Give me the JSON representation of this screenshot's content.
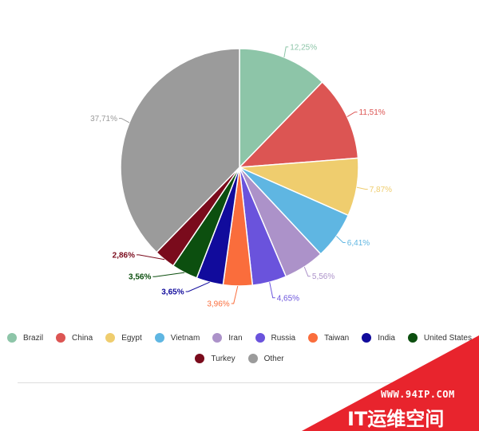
{
  "chart_data": {
    "type": "pie",
    "slices": [
      {
        "label": "Brazil",
        "value": 12.25,
        "text": "12,25%",
        "color": "#8dc5a8"
      },
      {
        "label": "China",
        "value": 11.51,
        "text": "11,51%",
        "color": "#dc5553"
      },
      {
        "label": "Egypt",
        "value": 7.87,
        "text": "7,87%",
        "color": "#efcd6e"
      },
      {
        "label": "Vietnam",
        "value": 6.41,
        "text": "6,41%",
        "color": "#5fb6e2"
      },
      {
        "label": "Iran",
        "value": 5.56,
        "text": "5,56%",
        "color": "#ac92c9"
      },
      {
        "label": "Russia",
        "value": 4.65,
        "text": "4,65%",
        "color": "#6a53dc"
      },
      {
        "label": "Taiwan",
        "value": 3.96,
        "text": "3,96%",
        "color": "#fa6d3c"
      },
      {
        "label": "India",
        "value": 3.65,
        "text": "3,65%",
        "color": "#110b9c"
      },
      {
        "label": "United States",
        "value": 3.56,
        "text": "3,56%",
        "color": "#0c4f0f"
      },
      {
        "label": "Turkey",
        "value": 2.86,
        "text": "2,86%",
        "color": "#7a0b1c"
      },
      {
        "label": "Other",
        "value": 37.71,
        "text": "37,71%",
        "color": "#9b9b9b"
      }
    ],
    "legend_position": "bottom"
  },
  "watermark": {
    "url": "WWW.94IP.COM",
    "brand": "IT运维空间",
    "color": "#e8242d"
  }
}
